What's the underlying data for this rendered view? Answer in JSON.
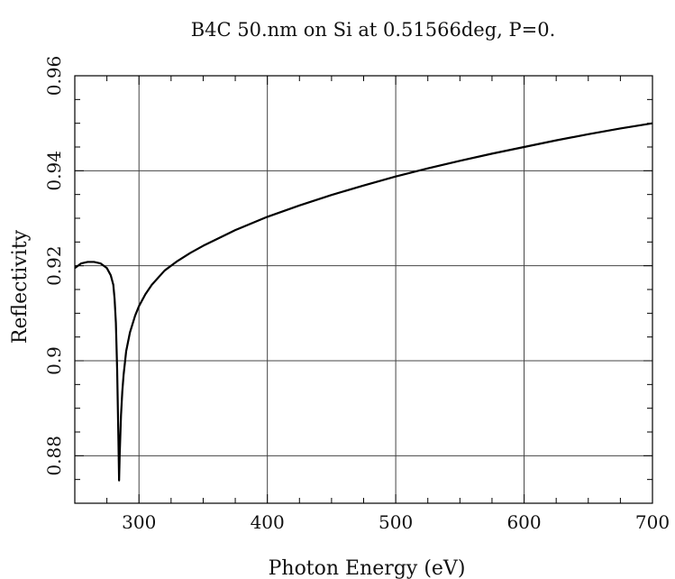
{
  "chart_data": {
    "type": "line",
    "title": "B4C 50.nm on Si at 0.51566deg, P=0.",
    "xlabel": "Photon Energy (eV)",
    "ylabel": "Reflectivity",
    "xlim": [
      250,
      700
    ],
    "ylim": [
      0.87,
      0.96
    ],
    "xticks": [
      300,
      400,
      500,
      600,
      700
    ],
    "xtick_labels": [
      "300",
      "400",
      "500",
      "600",
      "700"
    ],
    "yticks": [
      0.88,
      0.9,
      0.92,
      0.94,
      0.96
    ],
    "ytick_labels": [
      "0.88",
      "0.9",
      "0.92",
      "0.94",
      "0.96"
    ],
    "grid": true,
    "series": [
      {
        "x": [
          250,
          255,
          260,
          265,
          270,
          275,
          278,
          280,
          281,
          282,
          283,
          284,
          284.5,
          285,
          286,
          287,
          288,
          290,
          293,
          297,
          300,
          305,
          310,
          320,
          330,
          340,
          350,
          375,
          400,
          425,
          450,
          475,
          500,
          525,
          550,
          575,
          600,
          625,
          650,
          675,
          700
        ],
        "y": [
          0.9195,
          0.9205,
          0.9208,
          0.9208,
          0.9205,
          0.9195,
          0.918,
          0.916,
          0.913,
          0.908,
          0.898,
          0.883,
          0.8748,
          0.8805,
          0.8885,
          0.8935,
          0.897,
          0.902,
          0.906,
          0.9095,
          0.9115,
          0.914,
          0.916,
          0.919,
          0.921,
          0.9227,
          0.9242,
          0.9275,
          0.9303,
          0.9327,
          0.9349,
          0.9369,
          0.9388,
          0.9405,
          0.9421,
          0.9436,
          0.945,
          0.9464,
          0.9477,
          0.9489,
          0.95
        ]
      }
    ]
  }
}
